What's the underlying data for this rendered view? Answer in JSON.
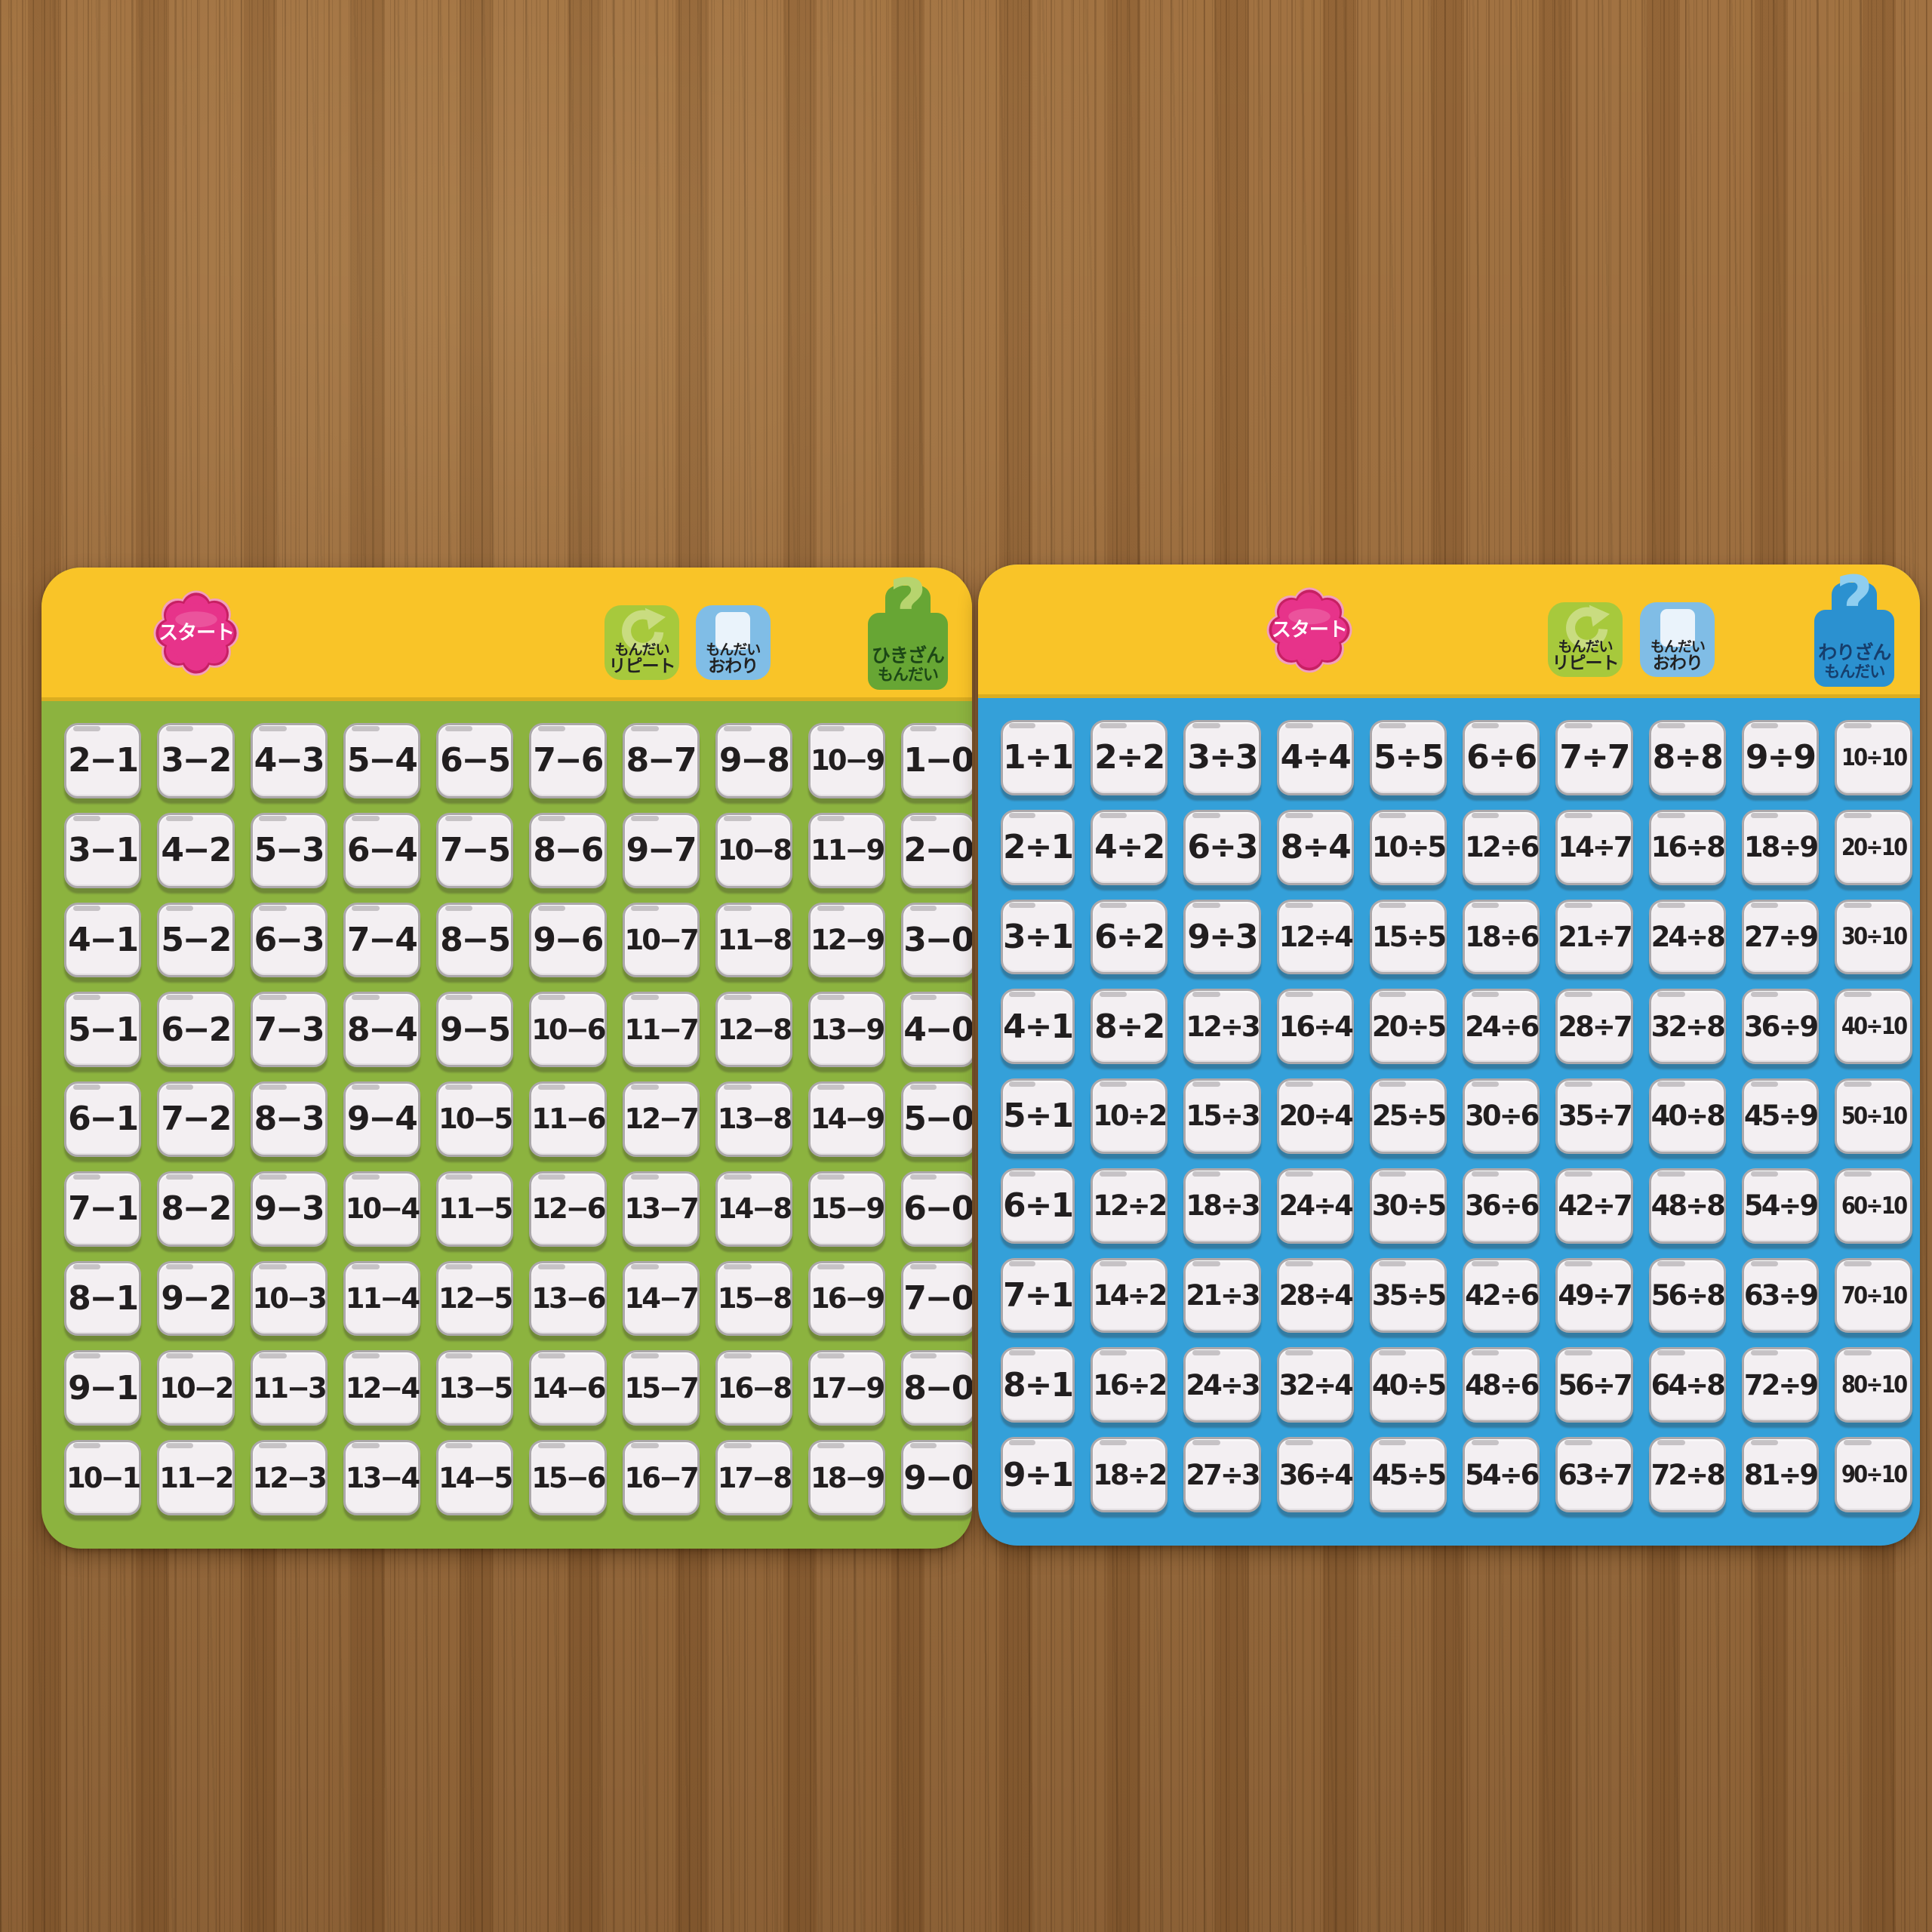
{
  "scene": {
    "surface": "wooden-table",
    "surface_color": "#9C6C3C"
  },
  "cards": [
    {
      "id": "subtraction",
      "header": {
        "start_label": "スタート",
        "repeat_line1": "もんだい",
        "repeat_line2": "リピート",
        "end_line1": "もんだい",
        "end_line2": "おわり",
        "badge_qmark": "?",
        "subject_line1": "ひきざん",
        "subject_line2": "もんだい"
      },
      "colors": {
        "header_bg": "#F9C428",
        "body_bg": "#8CB33F",
        "key_face": "#F3EFF2",
        "key_rim": "#ACA8AB",
        "key_text": "#211E1F",
        "start_bg": "#E7338A",
        "start_ring": "#C72063",
        "start_outer": "#F29FBE",
        "start_text": "#FFFFFF",
        "repeat_bg": "#A7C93C",
        "repeat_icon": "#C9DC80",
        "end_bg": "#80BDE6",
        "end_icon": "#EAF3FB",
        "btn_text": "#222222",
        "badge_bg": "#67A634",
        "badge_text": "#1C4716",
        "badge_qmark": "#B7D46E"
      },
      "grid": [
        [
          "2−1",
          "3−2",
          "4−3",
          "5−4",
          "6−5",
          "7−6",
          "8−7",
          "9−8",
          "10−9",
          "1−0"
        ],
        [
          "3−1",
          "4−2",
          "5−3",
          "6−4",
          "7−5",
          "8−6",
          "9−7",
          "10−8",
          "11−9",
          "2−0"
        ],
        [
          "4−1",
          "5−2",
          "6−3",
          "7−4",
          "8−5",
          "9−6",
          "10−7",
          "11−8",
          "12−9",
          "3−0"
        ],
        [
          "5−1",
          "6−2",
          "7−3",
          "8−4",
          "9−5",
          "10−6",
          "11−7",
          "12−8",
          "13−9",
          "4−0"
        ],
        [
          "6−1",
          "7−2",
          "8−3",
          "9−4",
          "10−5",
          "11−6",
          "12−7",
          "13−8",
          "14−9",
          "5−0"
        ],
        [
          "7−1",
          "8−2",
          "9−3",
          "10−4",
          "11−5",
          "12−6",
          "13−7",
          "14−8",
          "15−9",
          "6−0"
        ],
        [
          "8−1",
          "9−2",
          "10−3",
          "11−4",
          "12−5",
          "13−6",
          "14−7",
          "15−8",
          "16−9",
          "7−0"
        ],
        [
          "9−1",
          "10−2",
          "11−3",
          "12−4",
          "13−5",
          "14−6",
          "15−7",
          "16−8",
          "17−9",
          "8−0"
        ],
        [
          "10−1",
          "11−2",
          "12−3",
          "13−4",
          "14−5",
          "15−6",
          "16−7",
          "17−8",
          "18−9",
          "9−0"
        ]
      ]
    },
    {
      "id": "division",
      "header": {
        "start_label": "スタート",
        "repeat_line1": "もんだい",
        "repeat_line2": "リピート",
        "end_line1": "もんだい",
        "end_line2": "おわり",
        "badge_qmark": "?",
        "subject_line1": "わりざん",
        "subject_line2": "もんだい"
      },
      "colors": {
        "header_bg": "#F9C428",
        "body_bg": "#34A0D9",
        "key_face": "#F3EFF2",
        "key_rim": "#ACA8AB",
        "key_text": "#211E1F",
        "start_bg": "#E7338A",
        "start_ring": "#C72063",
        "start_outer": "#F29FBE",
        "start_text": "#FFFFFF",
        "repeat_bg": "#A7C93C",
        "repeat_icon": "#C9DC80",
        "end_bg": "#80BDE6",
        "end_icon": "#EAF3FB",
        "btn_text": "#222222",
        "badge_bg": "#2B91D0",
        "badge_text": "#163E6C",
        "badge_qmark": "#8FCEF0"
      },
      "grid": [
        [
          "1÷1",
          "2÷2",
          "3÷3",
          "4÷4",
          "5÷5",
          "6÷6",
          "7÷7",
          "8÷8",
          "9÷9",
          "10÷10"
        ],
        [
          "2÷1",
          "4÷2",
          "6÷3",
          "8÷4",
          "10÷5",
          "12÷6",
          "14÷7",
          "16÷8",
          "18÷9",
          "20÷10"
        ],
        [
          "3÷1",
          "6÷2",
          "9÷3",
          "12÷4",
          "15÷5",
          "18÷6",
          "21÷7",
          "24÷8",
          "27÷9",
          "30÷10"
        ],
        [
          "4÷1",
          "8÷2",
          "12÷3",
          "16÷4",
          "20÷5",
          "24÷6",
          "28÷7",
          "32÷8",
          "36÷9",
          "40÷10"
        ],
        [
          "5÷1",
          "10÷2",
          "15÷3",
          "20÷4",
          "25÷5",
          "30÷6",
          "35÷7",
          "40÷8",
          "45÷9",
          "50÷10"
        ],
        [
          "6÷1",
          "12÷2",
          "18÷3",
          "24÷4",
          "30÷5",
          "36÷6",
          "42÷7",
          "48÷8",
          "54÷9",
          "60÷10"
        ],
        [
          "7÷1",
          "14÷2",
          "21÷3",
          "28÷4",
          "35÷5",
          "42÷6",
          "49÷7",
          "56÷8",
          "63÷9",
          "70÷10"
        ],
        [
          "8÷1",
          "16÷2",
          "24÷3",
          "32÷4",
          "40÷5",
          "48÷6",
          "56÷7",
          "64÷8",
          "72÷9",
          "80÷10"
        ],
        [
          "9÷1",
          "18÷2",
          "27÷3",
          "36÷4",
          "45÷5",
          "54÷6",
          "63÷7",
          "72÷8",
          "81÷9",
          "90÷10"
        ]
      ]
    }
  ]
}
